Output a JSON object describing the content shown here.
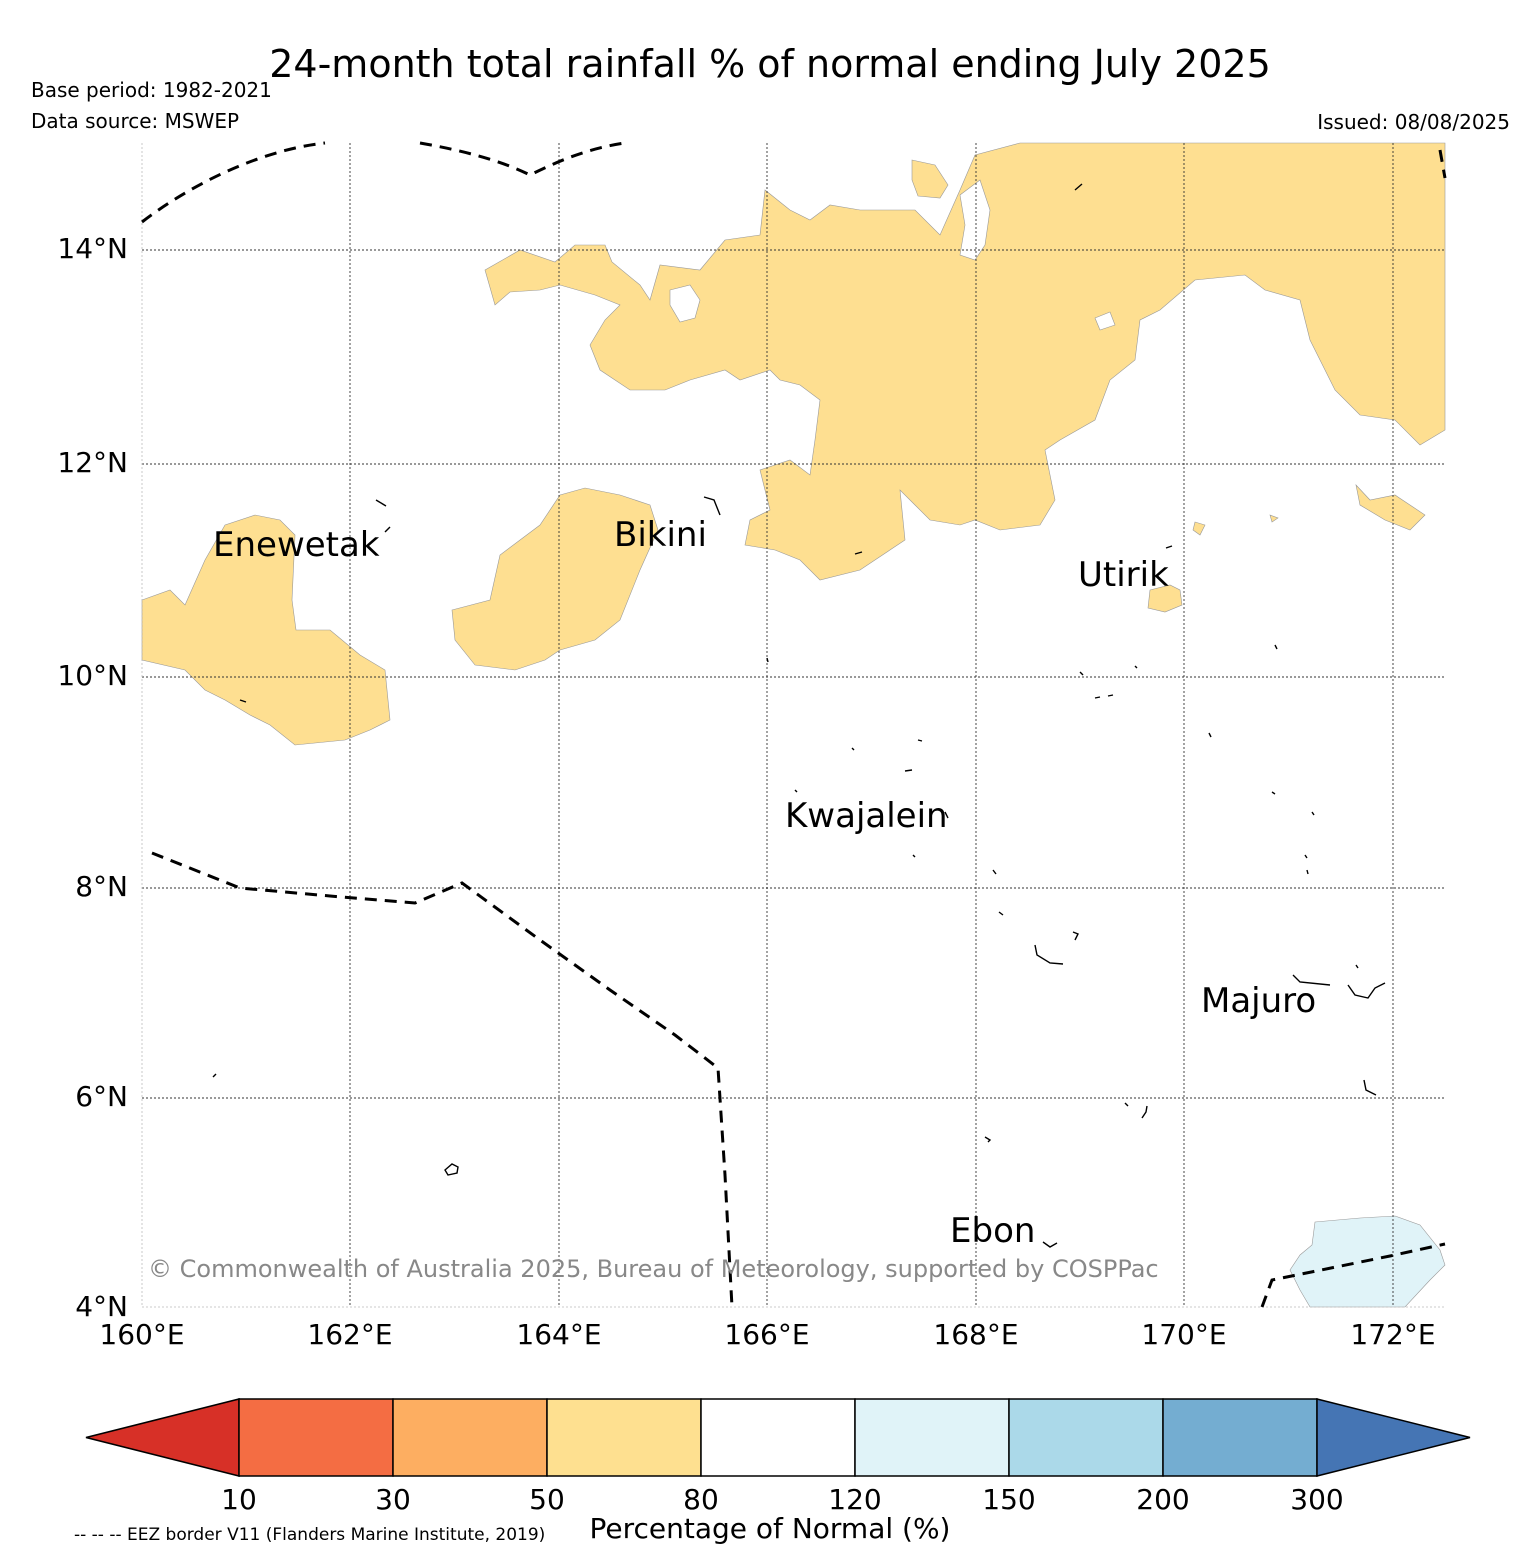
{
  "title": "24-month total rainfall % of normal ending July 2025",
  "base_period": "Base period: 1982-2021",
  "data_source": "Data source: MSWEP",
  "issued": "Issued: 08/08/2025",
  "copyright": "© Commonwealth of Australia 2025, Bureau of Meteorology, supported by COSPPac",
  "eez_note": "-- -- -- EEZ border V11 (Flanders Marine Institute, 2019)",
  "map": {
    "lat_labels": [
      "14°N",
      "12°N",
      "10°N",
      "8°N",
      "6°N",
      "4°N"
    ],
    "lon_labels": [
      "160°E",
      "162°E",
      "164°E",
      "166°E",
      "168°E",
      "170°E",
      "172°E"
    ],
    "places": [
      {
        "name": "Enewetak"
      },
      {
        "name": "Bikini"
      },
      {
        "name": "Utirik"
      },
      {
        "name": "Kwajalein"
      },
      {
        "name": "Majuro"
      },
      {
        "name": "Ebon"
      }
    ],
    "colors": {
      "dry_50_80": "#fedf91",
      "wet_120_150": "#e0f3f8",
      "land": "#000000"
    }
  },
  "colorbar": {
    "title": "Percentage of Normal (%)",
    "ticks": [
      "10",
      "30",
      "50",
      "80",
      "120",
      "150",
      "200",
      "300"
    ],
    "colors": [
      "#d73027",
      "#f46d43",
      "#fdae61",
      "#fee090",
      "#ffffff",
      "#e0f3f8",
      "#abd9e9",
      "#74add1",
      "#4575b4"
    ]
  }
}
